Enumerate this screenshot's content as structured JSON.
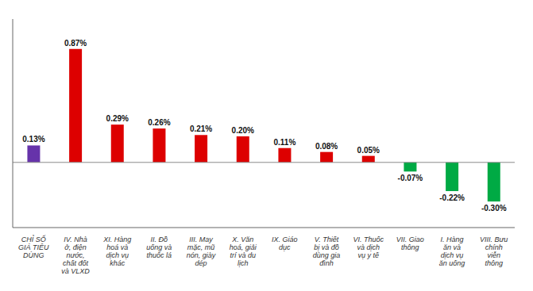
{
  "chart_data": {
    "type": "bar",
    "categories": [
      "CHỈ SỐ\nGIÁ TIÊU\nDÙNG",
      "IV. Nhà\nở, điện\nnước,\nchất đốt\nvà VLXD",
      "XI. Hàng\nhoá và\ndịch vụ\nkhác",
      "II. Đồ\nuống và\nthuốc lá",
      "III. May\nmặc, mũ\nnón, giày\ndép",
      "X. Văn\nhoá, giải\ntrí và du\nlịch",
      "IX. Giáo\ndục",
      "V. Thiết\nbị và đồ\ndùng gia\nđình",
      "VI. Thuốc\nvà dịch\nvụ y tế",
      "VII. Giao\nthông",
      "I. Hàng\năn và\ndịch vụ\năn uống",
      "VIII. Bưu\nchính\nviễn\nthông"
    ],
    "values": [
      0.13,
      0.87,
      0.29,
      0.26,
      0.21,
      0.2,
      0.11,
      0.08,
      0.05,
      -0.07,
      -0.22,
      -0.3
    ],
    "value_labels": [
      "0.13%",
      "0.87%",
      "0.29%",
      "0.26%",
      "0.21%",
      "0.20%",
      "0.11%",
      "0.08%",
      "0.05%",
      "-0.07%",
      "-0.22%",
      "-0.30%"
    ],
    "colors": [
      "#6633aa",
      "#dd0000",
      "#dd0000",
      "#dd0000",
      "#dd0000",
      "#dd0000",
      "#dd0000",
      "#dd0000",
      "#dd0000",
      "#00aa44",
      "#00aa44",
      "#00aa44"
    ],
    "data_labels": true,
    "ylim": [
      -0.5,
      1.1
    ],
    "yticks": [],
    "grid": false,
    "tick_labels": "x"
  }
}
